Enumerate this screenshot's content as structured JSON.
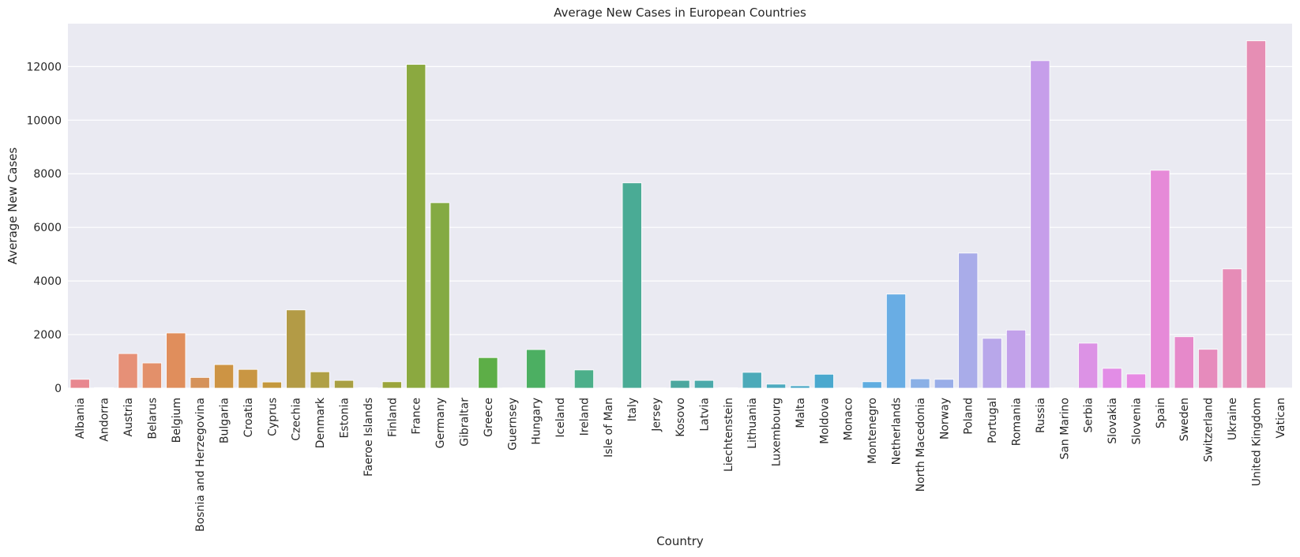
{
  "chart_data": {
    "type": "bar",
    "title": "Average New Cases in European Countries",
    "xlabel": "Country",
    "ylabel": "Average New Cases",
    "ylim": [
      0,
      13600
    ],
    "yticks": [
      0,
      2000,
      4000,
      6000,
      8000,
      10000,
      12000
    ],
    "grid": true,
    "legend": "none",
    "categories": [
      "Albania",
      "Andorra",
      "Austria",
      "Belarus",
      "Belgium",
      "Bosnia and Herzegovina",
      "Bulgaria",
      "Croatia",
      "Cyprus",
      "Czechia",
      "Denmark",
      "Estonia",
      "Faeroe Islands",
      "Finland",
      "France",
      "Germany",
      "Gibraltar",
      "Greece",
      "Guernsey",
      "Hungary",
      "Iceland",
      "Ireland",
      "Isle of Man",
      "Italy",
      "Jersey",
      "Kosovo",
      "Latvia",
      "Liechtenstein",
      "Lithuania",
      "Luxembourg",
      "Malta",
      "Moldova",
      "Monaco",
      "Montenegro",
      "Netherlands",
      "North Macedonia",
      "Norway",
      "Poland",
      "Portugal",
      "Romania",
      "Russia",
      "San Marino",
      "Serbia",
      "Slovakia",
      "Slovenia",
      "Spain",
      "Sweden",
      "Switzerland",
      "Ukraine",
      "United Kingdom",
      "Vatican"
    ],
    "values": [
      330,
      20,
      1290,
      940,
      2060,
      400,
      880,
      700,
      230,
      2920,
      610,
      290,
      15,
      240,
      12080,
      6920,
      5,
      1140,
      10,
      1440,
      15,
      680,
      10,
      7660,
      10,
      290,
      290,
      15,
      590,
      150,
      90,
      520,
      10,
      240,
      3510,
      350,
      330,
      5040,
      1860,
      2170,
      12220,
      10,
      1680,
      740,
      530,
      8130,
      1920,
      1450,
      4450,
      12960,
      5
    ],
    "colors": [
      "#e8878f",
      "#e88e79",
      "#e69077",
      "#e3906a",
      "#e08e5c",
      "#d5925a",
      "#cd9444",
      "#c99643",
      "#c4983d",
      "#b39b46",
      "#b0a046",
      "#a89f43",
      "#a1a242",
      "#9ba53c",
      "#8ba940",
      "#84aa43",
      "#65ad3f",
      "#5dae47",
      "#51b04f",
      "#4caf62",
      "#4cae73",
      "#4caf8a",
      "#4caf94",
      "#4aab95",
      "#4ba898",
      "#4ba79e",
      "#4ba9aa",
      "#4baaae",
      "#4caab9",
      "#4daabf",
      "#4da9c7",
      "#4aa8ce",
      "#58aad4",
      "#60ade0",
      "#69ade4",
      "#8ab0e6",
      "#99ade8",
      "#a9ace9",
      "#b8a7ea",
      "#c2a1ea",
      "#c69eea",
      "#d49ce6",
      "#dc92e5",
      "#e28de6",
      "#e78ae3",
      "#e68ad8",
      "#e689ca",
      "#e68bbc",
      "#e68cb7",
      "#e68eb4",
      "#e68fb2"
    ]
  }
}
